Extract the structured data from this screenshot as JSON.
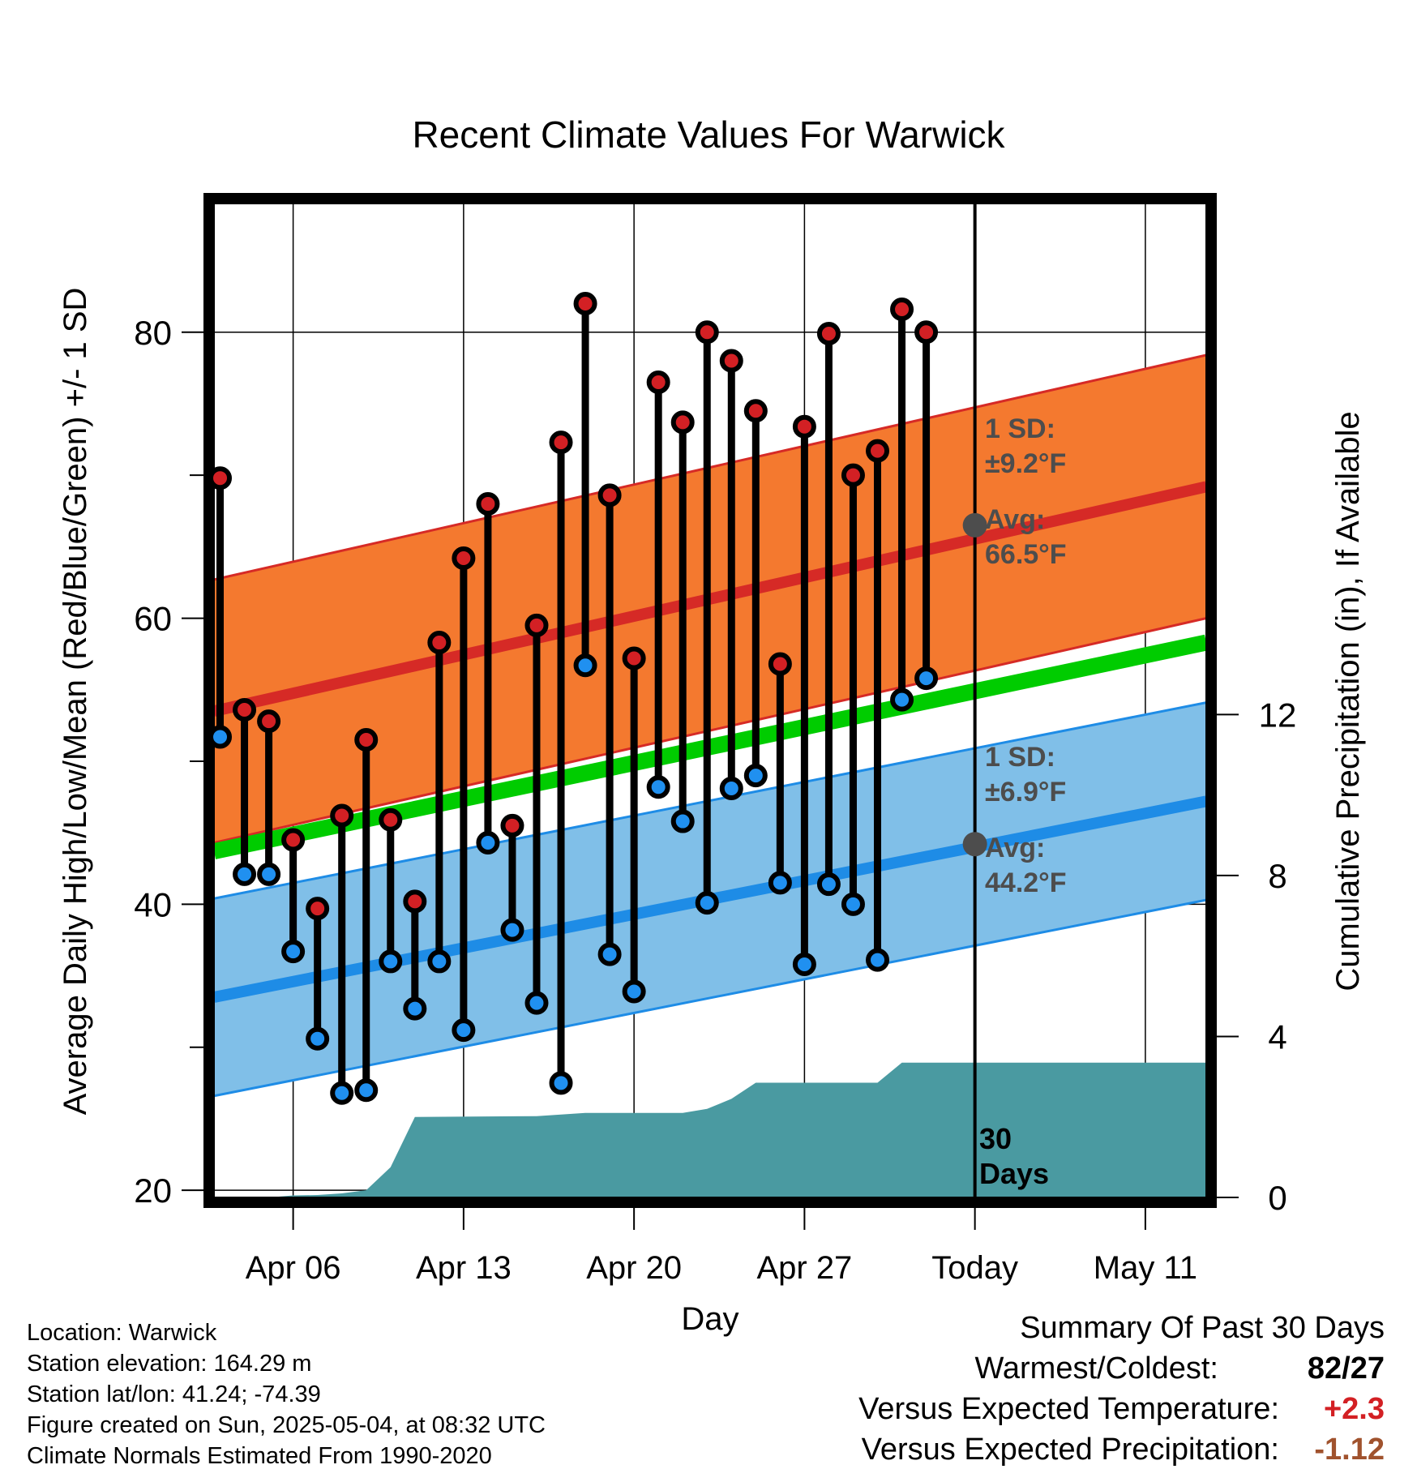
{
  "chart_data": {
    "type": "line",
    "title": "Recent Climate Values For Warwick",
    "ylabel_left": "Average Daily High/Low/Mean (Red/Blue/Green) +/- 1 SD",
    "ylabel_right": "Cumulative Precipitation (in), If Available",
    "xlabel": "Day",
    "ylim": [
      19.5,
      89
    ],
    "ylim_precip": [
      0,
      24.7
    ],
    "left_ticks": [
      20,
      40,
      60,
      80
    ],
    "left_minor_ticks": [
      30,
      50,
      70
    ],
    "right_ticks": [
      0,
      4,
      8,
      12
    ],
    "x_ticks": [
      {
        "day": 4,
        "label": "Apr 06"
      },
      {
        "day": 11,
        "label": "Apr 13"
      },
      {
        "day": 18,
        "label": "Apr 20"
      },
      {
        "day": 25,
        "label": "Apr 27"
      },
      {
        "day": 32,
        "label": "Today"
      },
      {
        "day": 39,
        "label": "May 11"
      }
    ],
    "xlim": [
      0.75,
      41.5
    ],
    "today_day": 32,
    "daily": [
      {
        "day": 1,
        "high": 69.8,
        "low": 51.7
      },
      {
        "day": 2,
        "high": 53.6,
        "low": 42.1
      },
      {
        "day": 3,
        "high": 52.8,
        "low": 42.1
      },
      {
        "day": 4,
        "high": 44.5,
        "low": 36.7
      },
      {
        "day": 5,
        "high": 39.7,
        "low": 30.6
      },
      {
        "day": 6,
        "high": 46.2,
        "low": 26.8
      },
      {
        "day": 7,
        "high": 51.5,
        "low": 27.0
      },
      {
        "day": 8,
        "high": 45.9,
        "low": 36.0
      },
      {
        "day": 9,
        "high": 40.2,
        "low": 32.7
      },
      {
        "day": 10,
        "high": 58.3,
        "low": 36.0
      },
      {
        "day": 11,
        "high": 64.2,
        "low": 31.2
      },
      {
        "day": 12,
        "high": 68.0,
        "low": 44.3
      },
      {
        "day": 13,
        "high": 45.5,
        "low": 38.2
      },
      {
        "day": 14,
        "high": 59.5,
        "low": 33.1
      },
      {
        "day": 15,
        "high": 72.3,
        "low": 27.5
      },
      {
        "day": 16,
        "high": 82.0,
        "low": 56.7
      },
      {
        "day": 17,
        "high": 68.6,
        "low": 36.5
      },
      {
        "day": 18,
        "high": 57.2,
        "low": 33.9
      },
      {
        "day": 19,
        "high": 76.5,
        "low": 48.2
      },
      {
        "day": 20,
        "high": 73.7,
        "low": 45.8
      },
      {
        "day": 21,
        "high": 80.0,
        "low": 40.1
      },
      {
        "day": 22,
        "high": 78.0,
        "low": 48.1
      },
      {
        "day": 23,
        "high": 74.5,
        "low": 49.0
      },
      {
        "day": 24,
        "high": 56.8,
        "low": 41.5
      },
      {
        "day": 25,
        "high": 73.4,
        "low": 35.8
      },
      {
        "day": 26,
        "high": 79.9,
        "low": 41.4
      },
      {
        "day": 27,
        "high": 70.0,
        "low": 40.0
      },
      {
        "day": 28,
        "high": 71.7,
        "low": 36.1
      },
      {
        "day": 29,
        "high": 81.6,
        "low": 54.3
      },
      {
        "day": 30,
        "high": 80.0,
        "low": 55.8
      }
    ],
    "normals": {
      "high_start": 53.5,
      "high_end": 69.2,
      "low_start": 33.5,
      "low_end": 47.2,
      "mean_start": 43.7,
      "mean_end": 58.3,
      "high_sd": 9.2,
      "low_sd": 6.9
    },
    "precip_cumulative": [
      {
        "day": 0.75,
        "value": 0.0
      },
      {
        "day": 3.0,
        "value": 0.0
      },
      {
        "day": 4.0,
        "value": 0.05
      },
      {
        "day": 5.0,
        "value": 0.06
      },
      {
        "day": 6.0,
        "value": 0.1
      },
      {
        "day": 7.0,
        "value": 0.18
      },
      {
        "day": 8.0,
        "value": 0.75
      },
      {
        "day": 9.0,
        "value": 2.0
      },
      {
        "day": 14.0,
        "value": 2.02
      },
      {
        "day": 16.0,
        "value": 2.1
      },
      {
        "day": 20.0,
        "value": 2.1
      },
      {
        "day": 21.0,
        "value": 2.2
      },
      {
        "day": 22.0,
        "value": 2.45
      },
      {
        "day": 23.0,
        "value": 2.85
      },
      {
        "day": 28.0,
        "value": 2.85
      },
      {
        "day": 29.0,
        "value": 3.35
      },
      {
        "day": 41.5,
        "value": 3.35
      }
    ],
    "annotations": {
      "high_sd_line1": "1 SD:",
      "high_sd_line2": "±9.2°F",
      "high_avg_line1": "Avg:",
      "high_avg_line2": "66.5°F",
      "high_avg_value": 66.5,
      "low_sd_line1": "1 SD:",
      "low_sd_line2": "±6.9°F",
      "low_avg_line1": "Avg:",
      "low_avg_line2": "44.2°F",
      "low_avg_value": 44.2,
      "days_line1": "30",
      "days_line2": "Days"
    },
    "colors": {
      "high_band": "#f4792f",
      "high_line": "#d62a26",
      "low_band": "#80bfe8",
      "low_line": "#1e8ce6",
      "mean_line": "#00cc00",
      "precip": "#4a9aa1",
      "high_dot": "#d32024",
      "low_dot": "#2090f0",
      "avg_dot": "#4d4d4d"
    }
  },
  "info": {
    "location": "Location: Warwick",
    "elevation": "Station elevation: 164.29 m",
    "latlon": "Station lat/lon: 41.24; -74.39",
    "created": "Figure created on Sun, 2025-05-04, at 08:32 UTC",
    "normals": "Climate Normals Estimated From 1990-2020"
  },
  "summary": {
    "heading": "Summary Of Past 30 Days",
    "warm_cold_label": "Warmest/Coldest:",
    "warm_cold_value": "82/27",
    "temp_label": "Versus Expected Temperature:",
    "temp_value": "+2.3",
    "temp_color": "#d32024",
    "precip_label": "Versus Expected Precipitation:",
    "precip_value": "-1.12",
    "precip_color": "#a0522d"
  }
}
